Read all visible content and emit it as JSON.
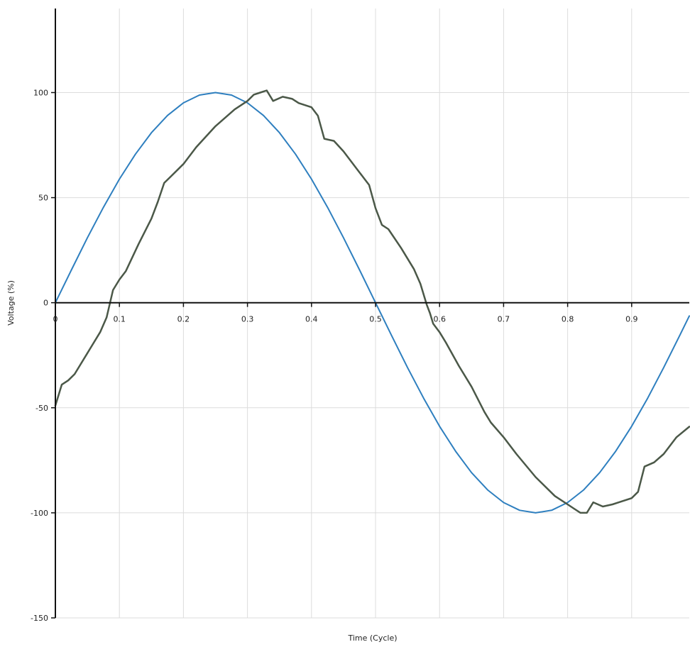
{
  "chart_data": {
    "type": "line",
    "title": "",
    "xlabel": "Time (Cycle)",
    "ylabel": "Voltage (%)",
    "xlim": [
      0,
      0.99
    ],
    "ylim": [
      -150,
      140
    ],
    "x_ticks": [
      0,
      0.1,
      0.2,
      0.3,
      0.4,
      0.5,
      0.6,
      0.7,
      0.8,
      0.9
    ],
    "x_tick_labels": [
      "0",
      "0.1",
      "0.2",
      "0.3",
      "0.4",
      "0.5",
      "0.6",
      "0.7",
      "0.8",
      "0.9"
    ],
    "y_ticks": [
      100,
      50,
      0,
      -50,
      -100,
      -150
    ],
    "y_tick_labels": [
      "100",
      "50",
      "0",
      "-50",
      "-100",
      "-150"
    ],
    "grid": true,
    "legend": "none",
    "series": [
      {
        "color": "#2e7fbf",
        "x": [
          0,
          0.025,
          0.05,
          0.075,
          0.1,
          0.125,
          0.15,
          0.175,
          0.2,
          0.225,
          0.25,
          0.275,
          0.3,
          0.325,
          0.35,
          0.375,
          0.4,
          0.425,
          0.45,
          0.475,
          0.5,
          0.525,
          0.55,
          0.575,
          0.6,
          0.625,
          0.65,
          0.675,
          0.7,
          0.725,
          0.75,
          0.775,
          0.8,
          0.825,
          0.85,
          0.875,
          0.9,
          0.925,
          0.95,
          0.975,
          0.99
        ],
        "y": [
          0,
          15.6,
          30.9,
          45.4,
          58.8,
          70.7,
          80.9,
          89.1,
          95.1,
          98.8,
          100,
          98.8,
          95.1,
          89.1,
          80.9,
          70.7,
          58.8,
          45.4,
          30.9,
          15.6,
          0,
          -15.6,
          -30.9,
          -45.4,
          -58.8,
          -70.7,
          -80.9,
          -89.1,
          -95.1,
          -98.8,
          -100,
          -98.8,
          -95.1,
          -89.1,
          -80.9,
          -70.7,
          -58.8,
          -45.4,
          -30.9,
          -15.6,
          -6.3
        ]
      },
      {
        "color": "#4b5848",
        "x": [
          0,
          0.01,
          0.02,
          0.03,
          0.05,
          0.07,
          0.08,
          0.09,
          0.1,
          0.11,
          0.13,
          0.15,
          0.16,
          0.17,
          0.18,
          0.2,
          0.22,
          0.25,
          0.28,
          0.3,
          0.31,
          0.32,
          0.33,
          0.34,
          0.355,
          0.37,
          0.38,
          0.4,
          0.41,
          0.42,
          0.435,
          0.45,
          0.47,
          0.49,
          0.5,
          0.51,
          0.52,
          0.54,
          0.56,
          0.57,
          0.58,
          0.585,
          0.59,
          0.6,
          0.61,
          0.63,
          0.65,
          0.67,
          0.68,
          0.7,
          0.72,
          0.75,
          0.78,
          0.8,
          0.81,
          0.82,
          0.83,
          0.84,
          0.855,
          0.87,
          0.88,
          0.9,
          0.91,
          0.92,
          0.935,
          0.95,
          0.97,
          0.99
        ],
        "y": [
          -49,
          -39,
          -37,
          -34,
          -24,
          -14,
          -7,
          6,
          11,
          15,
          28,
          40,
          48,
          57,
          60,
          66,
          74,
          84,
          92,
          96,
          99,
          100,
          101,
          96,
          98,
          97,
          95,
          93,
          89,
          78,
          77,
          72,
          64,
          56,
          45,
          37,
          35,
          26,
          16,
          9,
          -1,
          -5,
          -10,
          -14,
          -19,
          -30,
          -40,
          -52,
          -57,
          -64,
          -72,
          -83,
          -92,
          -96,
          -98,
          -100,
          -100,
          -95,
          -97,
          -96,
          -95,
          -93,
          -90,
          -78,
          -76,
          -72,
          -64,
          -59
        ]
      }
    ]
  }
}
